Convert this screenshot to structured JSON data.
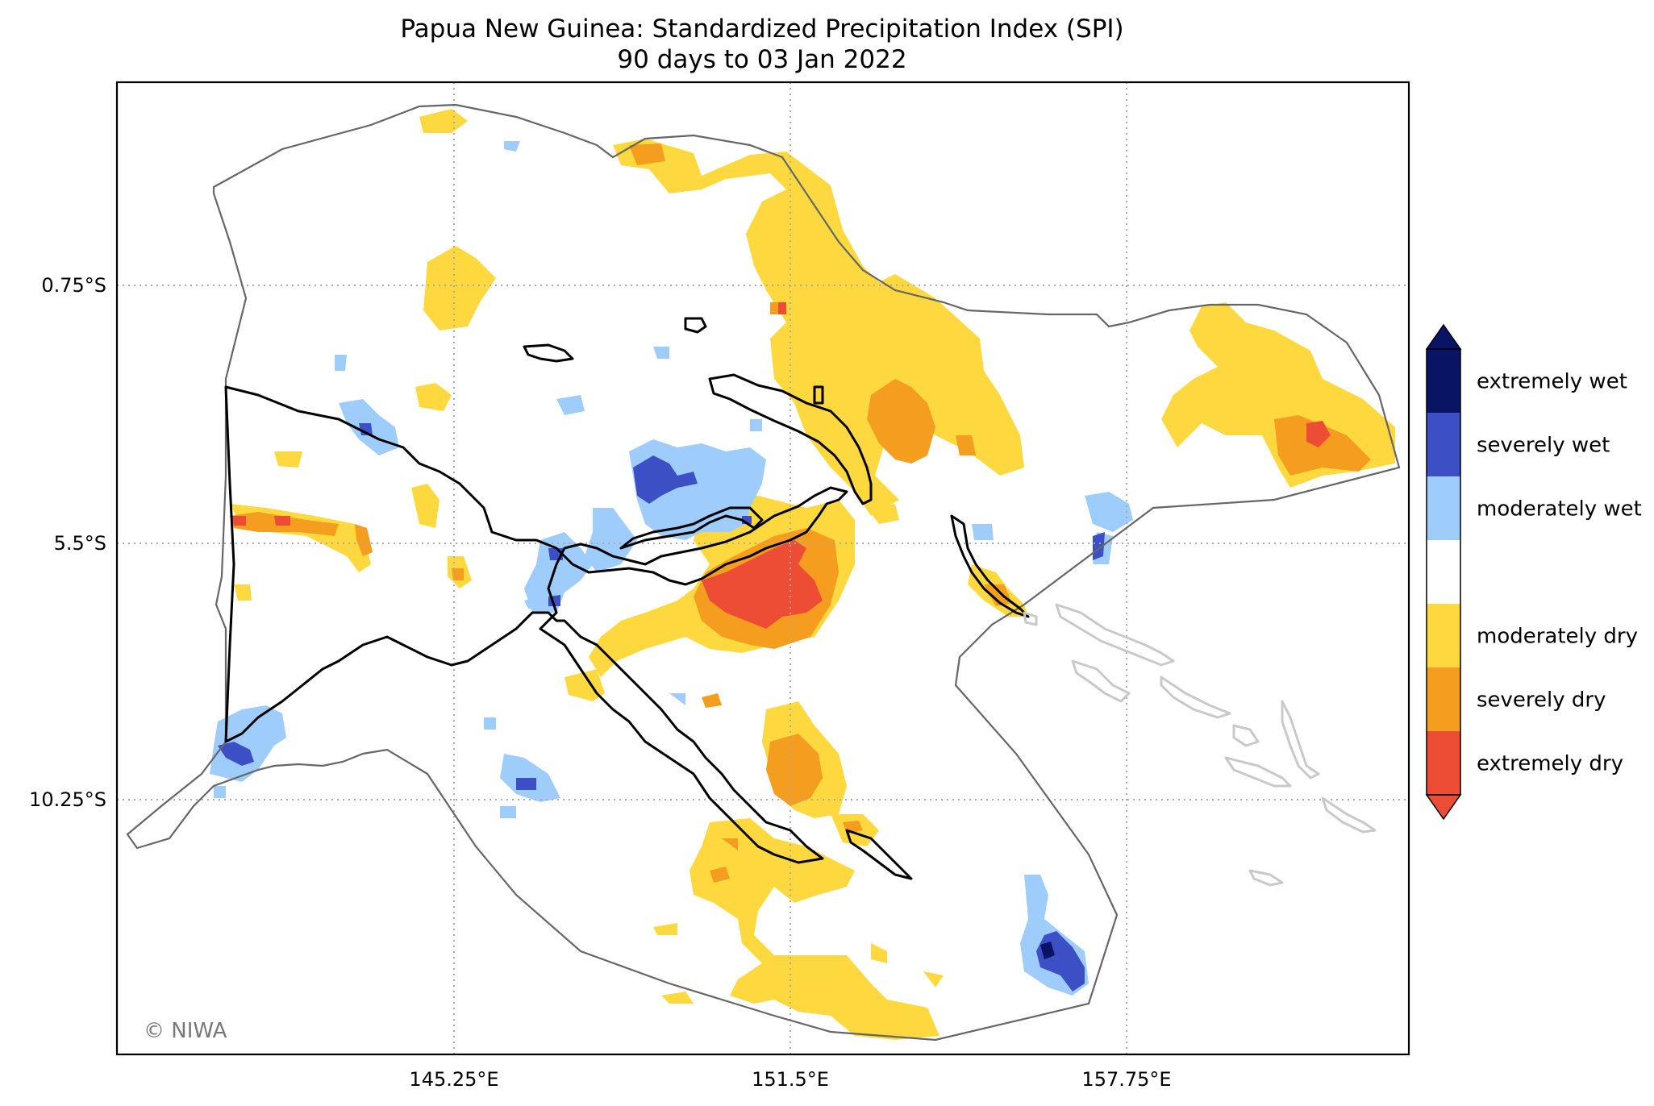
{
  "title": {
    "line1": "Papua New Guinea: Standardized Precipitation Index (SPI)",
    "line2": "90 days to 03 Jan 2022"
  },
  "axes": {
    "lat_ticks": [
      "0.75°S",
      "5.5°S",
      "10.25°S"
    ],
    "lon_ticks": [
      "145.25°E",
      "151.5°E",
      "157.75°E"
    ]
  },
  "legend": {
    "classes": [
      {
        "label": "extremely wet",
        "color": "#0a1464"
      },
      {
        "label": "severely wet",
        "color": "#3d4fc4"
      },
      {
        "label": "moderately wet",
        "color": "#9fcdfb"
      },
      {
        "label": "",
        "color": "#ffffff"
      },
      {
        "label": "moderately dry",
        "color": "#fdd93f"
      },
      {
        "label": "severely dry",
        "color": "#f49d1f"
      },
      {
        "label": "extremely dry",
        "color": "#ed4c35"
      }
    ]
  },
  "credit": "© NIWA"
}
